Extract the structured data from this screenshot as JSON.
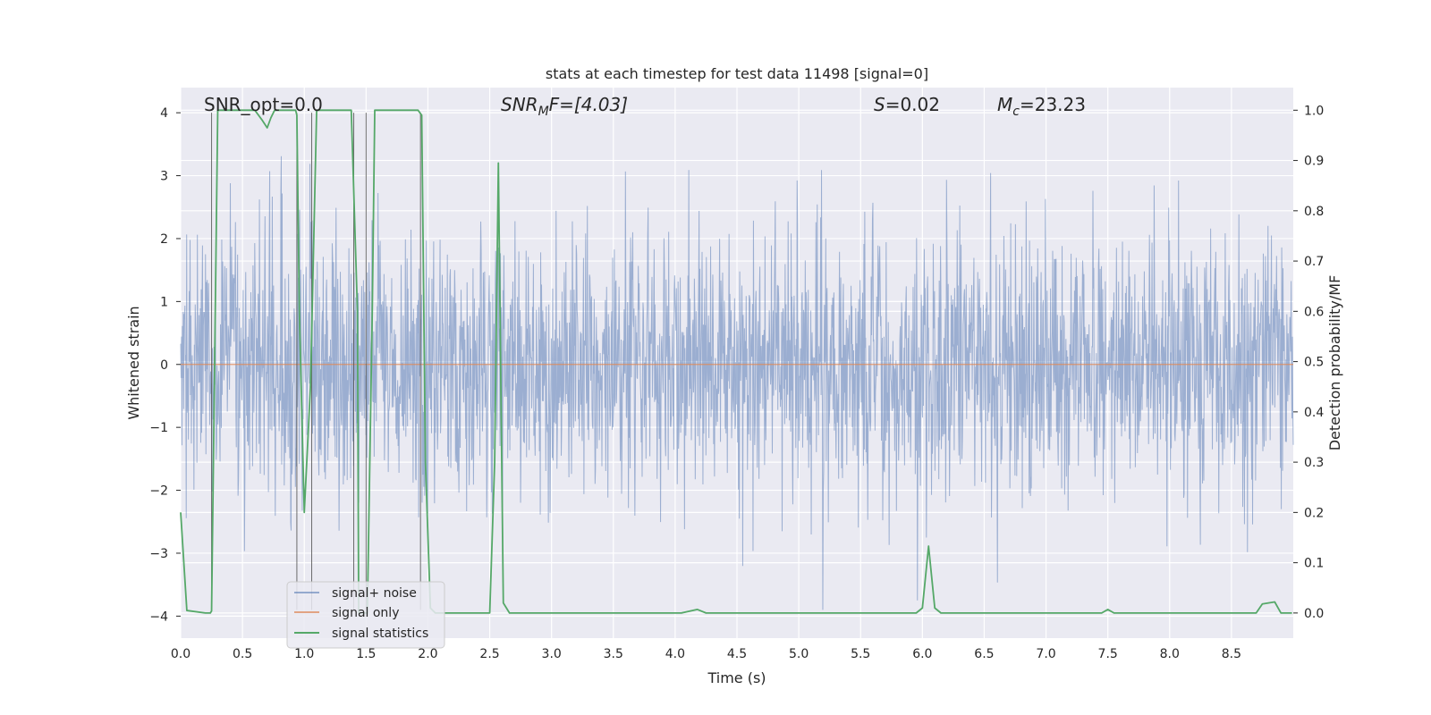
{
  "chart_data": {
    "type": "line",
    "title": "stats at each timestep for test data 11498 [signal=0]",
    "xlabel": "Time (s)",
    "ylabel_left": "Whitened strain",
    "ylabel_right": "Detection probability/MF",
    "xlim": [
      0.0,
      9.0
    ],
    "ylim_left": [
      -4.35,
      4.4
    ],
    "ylim_right": [
      -0.05,
      1.045
    ],
    "xticks": [
      "0.0",
      "0.5",
      "1.0",
      "1.5",
      "2.0",
      "2.5",
      "3.0",
      "3.5",
      "4.0",
      "4.5",
      "5.0",
      "5.5",
      "6.0",
      "6.5",
      "7.0",
      "7.5",
      "8.0",
      "8.5"
    ],
    "yticks_left": [
      "4",
      "3",
      "2",
      "1",
      "0",
      "−1",
      "−2",
      "−3",
      "−4"
    ],
    "yticks_right": [
      "1.0",
      "0.9",
      "0.8",
      "0.7",
      "0.6",
      "0.5",
      "0.4",
      "0.3",
      "0.2",
      "0.1",
      "0.0"
    ],
    "grid": true,
    "annotations": {
      "snr_opt": "SNR_opt=0.0",
      "snr_mf_base": "SNR",
      "snr_mf_sub": "M",
      "snr_mf_rest": "F=[4.03]",
      "s_base": "S",
      "s_rest": "=0.02",
      "mc_base": "M",
      "mc_sub": "c",
      "mc_rest": "=23.23"
    },
    "legend": {
      "placement": "lower-left",
      "entries": [
        "signal+ noise",
        "signal only",
        "signal statistics"
      ]
    },
    "series": [
      {
        "name": "signal+ noise",
        "axis": "left",
        "color": "#4c72b0",
        "description": "dense whitened strain noise, amplitude roughly within ±2.5 with peaks to about ±4"
      },
      {
        "name": "signal only",
        "axis": "left",
        "color": "#dd8452",
        "values": [
          0,
          0
        ]
      },
      {
        "name": "signal statistics",
        "axis": "right",
        "color": "#55a868",
        "x": [
          0.0,
          0.05,
          0.2,
          0.24,
          0.25,
          0.3,
          0.6,
          0.66,
          0.7,
          0.73,
          0.76,
          0.93,
          0.94,
          0.96,
          1.0,
          1.05,
          1.1,
          1.12,
          1.38,
          1.43,
          1.44,
          1.51,
          1.55,
          1.57,
          1.58,
          1.62,
          1.9,
          1.92,
          1.95,
          1.98,
          2.02,
          2.06,
          2.5,
          2.54,
          2.57,
          2.61,
          2.66,
          4.05,
          4.18,
          4.25,
          5.95,
          6.0,
          6.05,
          6.1,
          6.15,
          7.45,
          7.5,
          7.55,
          8.7,
          8.75,
          8.8,
          8.85,
          8.9,
          8.99
        ],
        "values": [
          0.2,
          0.005,
          0.0,
          0.0,
          0.004,
          1.0,
          1.0,
          0.98,
          0.965,
          0.985,
          1.0,
          1.0,
          0.99,
          0.6,
          0.2,
          0.45,
          1.0,
          1.0,
          1.0,
          0.6,
          0.0,
          0.0,
          0.6,
          1.0,
          1.0,
          1.0,
          1.0,
          1.0,
          0.99,
          0.3,
          0.01,
          0.0,
          0.0,
          0.3,
          0.895,
          0.02,
          0.0,
          0.0,
          0.007,
          0.0,
          0.0,
          0.01,
          0.133,
          0.01,
          0.0,
          0.0,
          0.007,
          0.0,
          0.0,
          0.018,
          0.02,
          0.022,
          0.0,
          0.0
        ]
      }
    ],
    "thin_vlines": {
      "color": "#555555",
      "x": [
        0.25,
        0.94,
        1.06,
        1.4,
        1.5,
        1.94
      ]
    },
    "colors": {
      "plot_bg": "#eaeaf2",
      "grid": "#ffffff",
      "noise": "#4c72b0",
      "signal_only": "#dd8452",
      "statistics": "#55a868"
    }
  }
}
